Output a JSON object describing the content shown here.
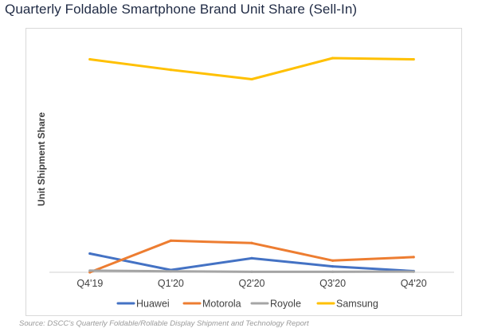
{
  "page": {
    "title": "Quarterly Foldable Smartphone Brand Unit Share (Sell-In)",
    "source": "Source: DSCC's Quarterly Foldable/Rollable Display Shipment and Technology Report"
  },
  "chart_data": {
    "type": "line",
    "title": "Quarterly Foldable Smartphone Brand Unit Share (Sell-In)",
    "xlabel": "",
    "ylabel": "Unit Shipment Share",
    "categories": [
      "Q4'19",
      "Q1'20",
      "Q2'20",
      "Q3'20",
      "Q4'20"
    ],
    "ylim": [
      0,
      100
    ],
    "y_ticks_shown": false,
    "grid": false,
    "legend": "bottom",
    "series": [
      {
        "name": "Huawei",
        "color": "#4472C4",
        "values": [
          8,
          1,
          6,
          2.5,
          0.5
        ]
      },
      {
        "name": "Motorola",
        "color": "#ED7D31",
        "values": [
          0,
          13.5,
          12.5,
          5,
          6.5
        ]
      },
      {
        "name": "Royole",
        "color": "#A5A5A5",
        "values": [
          0.7,
          0.4,
          0.2,
          0.2,
          0.3
        ]
      },
      {
        "name": "Samsung",
        "color": "#FFC000",
        "values": [
          91,
          86.5,
          82.5,
          91.5,
          91
        ]
      }
    ]
  }
}
